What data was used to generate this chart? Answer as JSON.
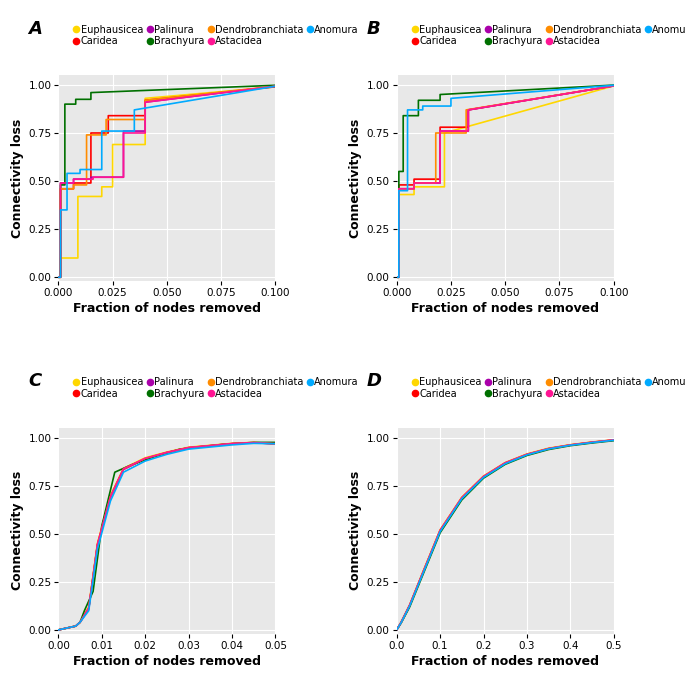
{
  "species": [
    "Euphausicea",
    "Caridea",
    "Palinura",
    "Brachyura",
    "Dendrobranchiata",
    "Astacidea",
    "Anomura"
  ],
  "colors": [
    "#FFD700",
    "#FF0000",
    "#AA00AA",
    "#007000",
    "#FF8C00",
    "#FF1493",
    "#00AAFF"
  ],
  "panel_labels": [
    "A",
    "B",
    "C",
    "D"
  ],
  "xlabel": "Fraction of nodes removed",
  "ylabel": "Connectivity loss",
  "bg_color": "#E8E8E8",
  "grid_color": "white",
  "legend_fontsize": 7.0,
  "axis_label_fontsize": 9,
  "tick_fontsize": 7.5,
  "panel_label_fontsize": 13,
  "panel_A": {
    "xlim": [
      0,
      0.1
    ],
    "ylim": [
      -0.02,
      1.05
    ],
    "xticks": [
      0.0,
      0.025,
      0.05,
      0.075,
      0.1
    ],
    "yticks": [
      0.0,
      0.25,
      0.5,
      0.75,
      1.0
    ],
    "curves": {
      "Euphausicea": [
        [
          0.0,
          0.001,
          0.001,
          0.009,
          0.009,
          0.02,
          0.02,
          0.025,
          0.025,
          0.04,
          0.04,
          0.1
        ],
        [
          0.0,
          0.0,
          0.1,
          0.1,
          0.42,
          0.42,
          0.47,
          0.47,
          0.69,
          0.69,
          0.93,
          0.99
        ]
      ],
      "Caridea": [
        [
          0.0,
          0.001,
          0.001,
          0.007,
          0.007,
          0.015,
          0.015,
          0.023,
          0.023,
          0.04,
          0.04,
          0.1
        ],
        [
          0.0,
          0.0,
          0.46,
          0.46,
          0.49,
          0.49,
          0.75,
          0.75,
          0.84,
          0.84,
          0.92,
          0.99
        ]
      ],
      "Palinura": [
        [
          0.0,
          0.001,
          0.001,
          0.007,
          0.007,
          0.015,
          0.015,
          0.03,
          0.03,
          0.04,
          0.04,
          0.1
        ],
        [
          0.0,
          0.0,
          0.49,
          0.49,
          0.51,
          0.51,
          0.52,
          0.52,
          0.76,
          0.76,
          0.91,
          0.993
        ]
      ],
      "Brachyura": [
        [
          0.0,
          0.001,
          0.001,
          0.003,
          0.003,
          0.008,
          0.008,
          0.015,
          0.015,
          0.1
        ],
        [
          0.0,
          0.0,
          0.48,
          0.48,
          0.9,
          0.9,
          0.925,
          0.925,
          0.96,
          0.998
        ]
      ],
      "Dendrobranchiata": [
        [
          0.0,
          0.001,
          0.001,
          0.007,
          0.007,
          0.013,
          0.013,
          0.022,
          0.022,
          0.04,
          0.04,
          0.1
        ],
        [
          0.0,
          0.0,
          0.46,
          0.46,
          0.48,
          0.48,
          0.74,
          0.74,
          0.82,
          0.82,
          0.92,
          0.993
        ]
      ],
      "Astacidea": [
        [
          0.0,
          0.001,
          0.001,
          0.007,
          0.007,
          0.016,
          0.016,
          0.03,
          0.03,
          0.04,
          0.04,
          0.1
        ],
        [
          0.0,
          0.0,
          0.49,
          0.49,
          0.51,
          0.51,
          0.52,
          0.52,
          0.75,
          0.75,
          0.91,
          0.993
        ]
      ],
      "Anomura": [
        [
          0.0,
          0.001,
          0.001,
          0.004,
          0.004,
          0.01,
          0.01,
          0.02,
          0.02,
          0.035,
          0.035,
          0.1
        ],
        [
          0.0,
          0.0,
          0.35,
          0.35,
          0.54,
          0.54,
          0.56,
          0.56,
          0.76,
          0.76,
          0.87,
          0.993
        ]
      ]
    }
  },
  "panel_B": {
    "xlim": [
      0,
      0.1
    ],
    "ylim": [
      -0.02,
      1.05
    ],
    "xticks": [
      0.0,
      0.025,
      0.05,
      0.075,
      0.1
    ],
    "yticks": [
      0.0,
      0.25,
      0.5,
      0.75,
      1.0
    ],
    "curves": {
      "Euphausicea": [
        [
          0.0,
          0.001,
          0.001,
          0.008,
          0.008,
          0.022,
          0.022,
          0.1
        ],
        [
          0.0,
          0.0,
          0.43,
          0.43,
          0.47,
          0.47,
          0.75,
          0.995
        ]
      ],
      "Caridea": [
        [
          0.0,
          0.001,
          0.001,
          0.008,
          0.008,
          0.02,
          0.02,
          0.033,
          0.033,
          0.1
        ],
        [
          0.0,
          0.0,
          0.48,
          0.48,
          0.51,
          0.51,
          0.78,
          0.78,
          0.87,
          0.995
        ]
      ],
      "Palinura": [
        [
          0.0,
          0.001,
          0.001,
          0.008,
          0.008,
          0.02,
          0.02,
          0.033,
          0.033,
          0.1
        ],
        [
          0.0,
          0.0,
          0.46,
          0.46,
          0.49,
          0.49,
          0.76,
          0.76,
          0.87,
          0.995
        ]
      ],
      "Brachyura": [
        [
          0.0,
          0.001,
          0.001,
          0.003,
          0.003,
          0.01,
          0.01,
          0.02,
          0.02,
          0.1
        ],
        [
          0.0,
          0.0,
          0.55,
          0.55,
          0.84,
          0.84,
          0.92,
          0.92,
          0.95,
          0.999
        ]
      ],
      "Dendrobranchiata": [
        [
          0.0,
          0.001,
          0.001,
          0.008,
          0.008,
          0.018,
          0.018,
          0.032,
          0.032,
          0.1
        ],
        [
          0.0,
          0.0,
          0.46,
          0.46,
          0.49,
          0.49,
          0.75,
          0.75,
          0.87,
          0.995
        ]
      ],
      "Astacidea": [
        [
          0.0,
          0.001,
          0.001,
          0.008,
          0.008,
          0.02,
          0.02,
          0.033,
          0.033,
          0.1
        ],
        [
          0.0,
          0.0,
          0.46,
          0.46,
          0.49,
          0.49,
          0.76,
          0.76,
          0.87,
          0.995
        ]
      ],
      "Anomura": [
        [
          0.0,
          0.001,
          0.001,
          0.005,
          0.005,
          0.012,
          0.012,
          0.025,
          0.025,
          0.1
        ],
        [
          0.0,
          0.0,
          0.45,
          0.45,
          0.87,
          0.87,
          0.89,
          0.89,
          0.93,
          0.998
        ]
      ]
    }
  },
  "panel_C": {
    "xlim": [
      0,
      0.05
    ],
    "ylim": [
      -0.02,
      1.05
    ],
    "xticks": [
      0.0,
      0.01,
      0.02,
      0.03,
      0.04,
      0.05
    ],
    "yticks": [
      0.0,
      0.25,
      0.5,
      0.75,
      1.0
    ],
    "curves": {
      "Euphausicea": [
        [
          0.0,
          0.004,
          0.005,
          0.007,
          0.009,
          0.012,
          0.015,
          0.02,
          0.025,
          0.03,
          0.04,
          0.045,
          0.05
        ],
        [
          0.0,
          0.02,
          0.04,
          0.12,
          0.45,
          0.7,
          0.84,
          0.895,
          0.925,
          0.95,
          0.97,
          0.975,
          0.968
        ]
      ],
      "Caridea": [
        [
          0.0,
          0.004,
          0.005,
          0.007,
          0.009,
          0.012,
          0.015,
          0.02,
          0.025,
          0.03,
          0.04,
          0.045,
          0.05
        ],
        [
          0.0,
          0.02,
          0.04,
          0.11,
          0.44,
          0.69,
          0.835,
          0.89,
          0.922,
          0.947,
          0.968,
          0.973,
          0.968
        ]
      ],
      "Palinura": [
        [
          0.0,
          0.004,
          0.005,
          0.007,
          0.009,
          0.012,
          0.015,
          0.02,
          0.025,
          0.03,
          0.04,
          0.045,
          0.05
        ],
        [
          0.0,
          0.02,
          0.04,
          0.11,
          0.44,
          0.69,
          0.835,
          0.89,
          0.922,
          0.947,
          0.968,
          0.973,
          0.968
        ]
      ],
      "Brachyura": [
        [
          0.0,
          0.004,
          0.005,
          0.006,
          0.008,
          0.01,
          0.013,
          0.017,
          0.022,
          0.028,
          0.038,
          0.045,
          0.05
        ],
        [
          0.0,
          0.02,
          0.04,
          0.1,
          0.2,
          0.54,
          0.82,
          0.86,
          0.9,
          0.94,
          0.965,
          0.975,
          0.975
        ]
      ],
      "Dendrobranchiata": [
        [
          0.0,
          0.004,
          0.005,
          0.007,
          0.009,
          0.012,
          0.015,
          0.02,
          0.025,
          0.03,
          0.04,
          0.045,
          0.05
        ],
        [
          0.0,
          0.02,
          0.04,
          0.115,
          0.445,
          0.693,
          0.837,
          0.892,
          0.923,
          0.948,
          0.969,
          0.974,
          0.968
        ]
      ],
      "Astacidea": [
        [
          0.0,
          0.004,
          0.005,
          0.007,
          0.009,
          0.012,
          0.015,
          0.02,
          0.025,
          0.03,
          0.04,
          0.045,
          0.05
        ],
        [
          0.0,
          0.02,
          0.04,
          0.115,
          0.445,
          0.693,
          0.837,
          0.892,
          0.923,
          0.948,
          0.969,
          0.974,
          0.968
        ]
      ],
      "Anomura": [
        [
          0.0,
          0.004,
          0.005,
          0.007,
          0.009,
          0.012,
          0.015,
          0.02,
          0.025,
          0.03,
          0.04,
          0.045,
          0.05
        ],
        [
          0.0,
          0.02,
          0.04,
          0.1,
          0.42,
          0.67,
          0.82,
          0.878,
          0.913,
          0.94,
          0.962,
          0.97,
          0.968
        ]
      ]
    }
  },
  "panel_D": {
    "xlim": [
      0,
      0.5
    ],
    "ylim": [
      -0.02,
      1.05
    ],
    "xticks": [
      0.0,
      0.1,
      0.2,
      0.3,
      0.4,
      0.5
    ],
    "yticks": [
      0.0,
      0.25,
      0.5,
      0.75,
      1.0
    ],
    "curves": {
      "Euphausicea": [
        [
          0.0,
          0.01,
          0.03,
          0.06,
          0.1,
          0.15,
          0.2,
          0.25,
          0.3,
          0.35,
          0.4,
          0.45,
          0.5
        ],
        [
          0.0,
          0.04,
          0.13,
          0.3,
          0.52,
          0.69,
          0.8,
          0.87,
          0.915,
          0.945,
          0.963,
          0.977,
          0.988
        ]
      ],
      "Caridea": [
        [
          0.0,
          0.01,
          0.03,
          0.06,
          0.1,
          0.15,
          0.2,
          0.25,
          0.3,
          0.35,
          0.4,
          0.45,
          0.5
        ],
        [
          0.0,
          0.038,
          0.128,
          0.295,
          0.515,
          0.685,
          0.796,
          0.867,
          0.912,
          0.942,
          0.961,
          0.975,
          0.987
        ]
      ],
      "Palinura": [
        [
          0.0,
          0.01,
          0.03,
          0.06,
          0.1,
          0.15,
          0.2,
          0.25,
          0.3,
          0.35,
          0.4,
          0.45,
          0.5
        ],
        [
          0.0,
          0.038,
          0.128,
          0.295,
          0.515,
          0.685,
          0.796,
          0.867,
          0.912,
          0.942,
          0.961,
          0.975,
          0.987
        ]
      ],
      "Brachyura": [
        [
          0.0,
          0.01,
          0.03,
          0.06,
          0.1,
          0.15,
          0.2,
          0.25,
          0.3,
          0.35,
          0.4,
          0.45,
          0.5
        ],
        [
          0.0,
          0.035,
          0.12,
          0.285,
          0.505,
          0.676,
          0.789,
          0.861,
          0.907,
          0.938,
          0.958,
          0.972,
          0.984
        ]
      ],
      "Dendrobranchiata": [
        [
          0.0,
          0.01,
          0.03,
          0.06,
          0.1,
          0.15,
          0.2,
          0.25,
          0.3,
          0.35,
          0.4,
          0.45,
          0.5
        ],
        [
          0.0,
          0.039,
          0.13,
          0.297,
          0.518,
          0.688,
          0.798,
          0.869,
          0.913,
          0.943,
          0.962,
          0.976,
          0.988
        ]
      ],
      "Astacidea": [
        [
          0.0,
          0.01,
          0.03,
          0.06,
          0.1,
          0.15,
          0.2,
          0.25,
          0.3,
          0.35,
          0.4,
          0.45,
          0.5
        ],
        [
          0.0,
          0.039,
          0.13,
          0.297,
          0.518,
          0.688,
          0.798,
          0.869,
          0.913,
          0.943,
          0.962,
          0.976,
          0.988
        ]
      ],
      "Anomura": [
        [
          0.0,
          0.01,
          0.03,
          0.06,
          0.1,
          0.15,
          0.2,
          0.25,
          0.3,
          0.35,
          0.4,
          0.45,
          0.5
        ],
        [
          0.0,
          0.037,
          0.125,
          0.291,
          0.511,
          0.682,
          0.793,
          0.864,
          0.91,
          0.941,
          0.96,
          0.974,
          0.986
        ]
      ]
    }
  }
}
